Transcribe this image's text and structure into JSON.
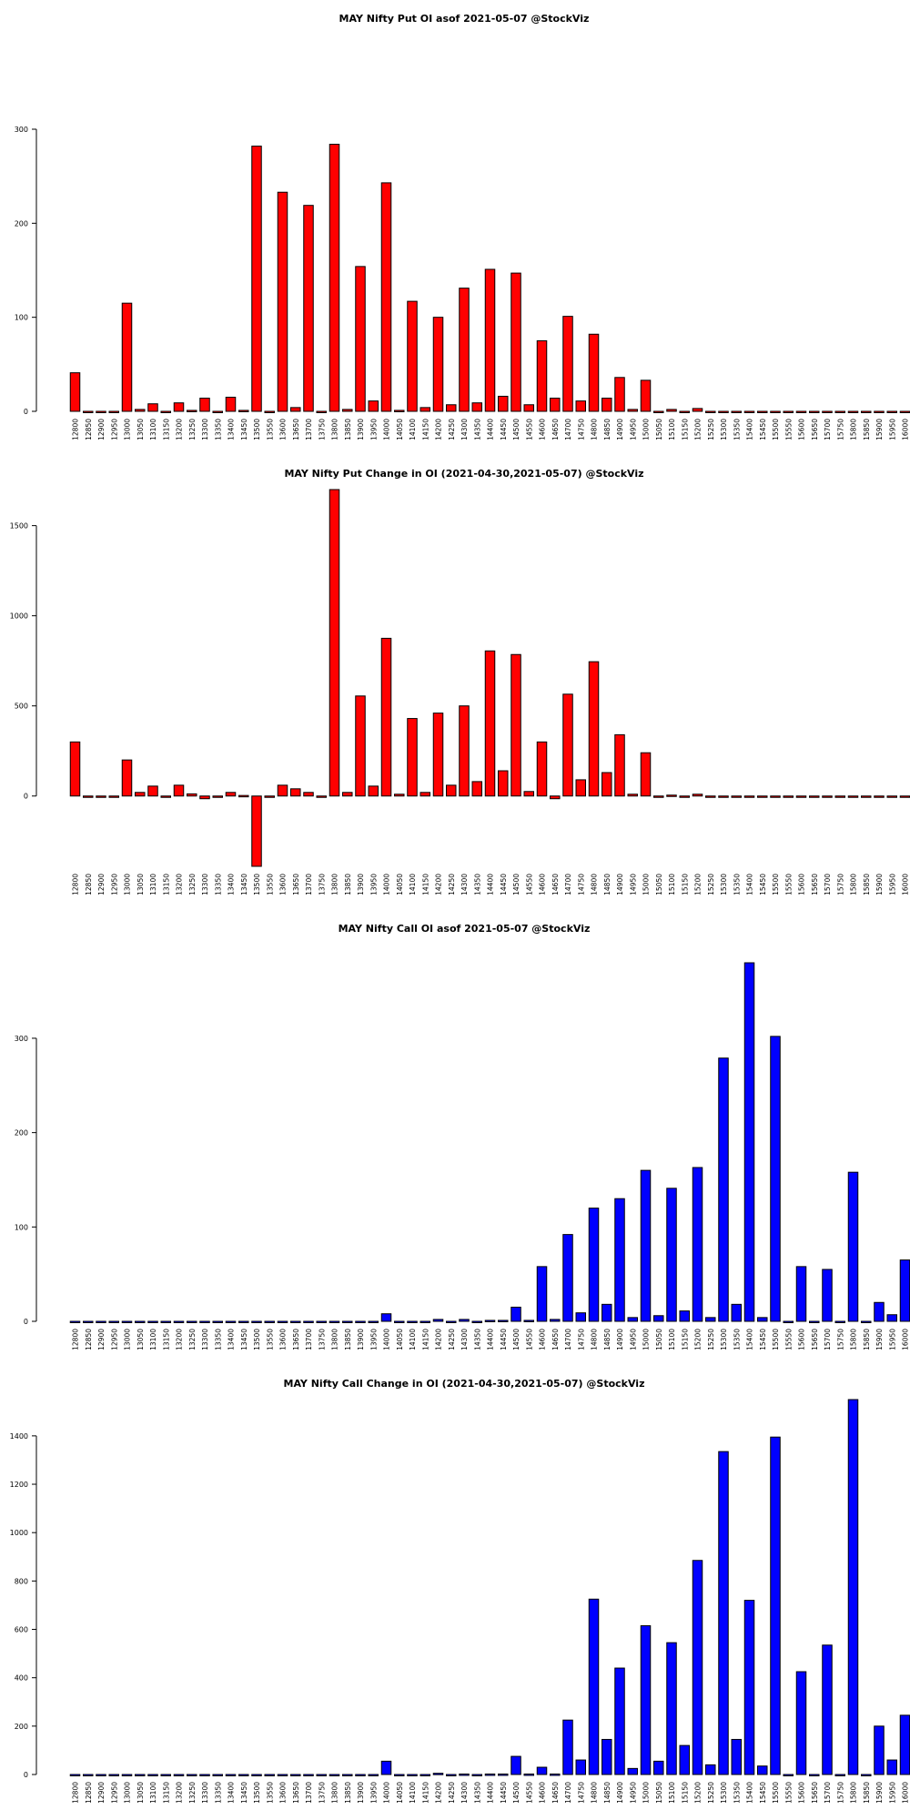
{
  "chart_data": [
    {
      "type": "bar",
      "title": "MAY Nifty Put OI asof 2021-05-07 @StockViz",
      "color": "#ff0000",
      "ylim": [
        0,
        300
      ],
      "yticks": [
        0,
        100,
        200,
        300
      ],
      "categories": [
        "12800",
        "12850",
        "12900",
        "12950",
        "13000",
        "13050",
        "13100",
        "13150",
        "13200",
        "13250",
        "13300",
        "13350",
        "13400",
        "13450",
        "13500",
        "13550",
        "13600",
        "13650",
        "13700",
        "13750",
        "13800",
        "13850",
        "13900",
        "13950",
        "14000",
        "14050",
        "14100",
        "14150",
        "14200",
        "14250",
        "14300",
        "14350",
        "14400",
        "14450",
        "14500",
        "14550",
        "14600",
        "14650",
        "14700",
        "14750",
        "14800",
        "14850",
        "14900",
        "14950",
        "15000",
        "15050",
        "15100",
        "15150",
        "15200",
        "15250",
        "15300",
        "15350",
        "15400",
        "15450",
        "15500",
        "15550",
        "15600",
        "15650",
        "15700",
        "15750",
        "15800",
        "15850",
        "15900",
        "15950",
        "16000"
      ],
      "values": [
        41,
        0,
        0,
        0,
        115,
        2,
        8,
        0,
        9,
        1,
        14,
        0,
        15,
        1,
        282,
        0,
        233,
        4,
        219,
        0,
        284,
        2,
        154,
        11,
        243,
        1,
        117,
        4,
        100,
        7,
        131,
        9,
        151,
        16,
        147,
        7,
        75,
        14,
        101,
        11,
        82,
        14,
        36,
        2,
        33,
        0,
        2,
        0,
        3,
        0,
        0,
        0,
        0,
        0,
        0,
        0,
        0,
        0,
        0,
        0,
        0,
        0,
        0,
        0,
        0
      ]
    },
    {
      "type": "bar",
      "title": "MAY Nifty Put Change in OI (2021-04-30,2021-05-07) @StockViz",
      "color": "#ff0000",
      "ylim": [
        -390,
        1700
      ],
      "yticks": [
        0,
        500,
        1000,
        1500
      ],
      "categories": [
        "12800",
        "12850",
        "12900",
        "12950",
        "13000",
        "13050",
        "13100",
        "13150",
        "13200",
        "13250",
        "13300",
        "13350",
        "13400",
        "13450",
        "13500",
        "13550",
        "13600",
        "13650",
        "13700",
        "13750",
        "13800",
        "13850",
        "13900",
        "13950",
        "14000",
        "14050",
        "14100",
        "14150",
        "14200",
        "14250",
        "14300",
        "14350",
        "14400",
        "14450",
        "14500",
        "14550",
        "14600",
        "14650",
        "14700",
        "14750",
        "14800",
        "14850",
        "14900",
        "14950",
        "15000",
        "15050",
        "15100",
        "15150",
        "15200",
        "15250",
        "15300",
        "15350",
        "15400",
        "15450",
        "15500",
        "15550",
        "15600",
        "15650",
        "15700",
        "15750",
        "15800",
        "15850",
        "15900",
        "15950",
        "16000"
      ],
      "values": [
        300,
        0,
        0,
        0,
        200,
        20,
        55,
        0,
        60,
        12,
        -15,
        0,
        20,
        3,
        -390,
        0,
        60,
        40,
        20,
        0,
        1700,
        20,
        555,
        55,
        875,
        10,
        430,
        20,
        460,
        60,
        500,
        80,
        805,
        140,
        785,
        25,
        300,
        -15,
        565,
        90,
        745,
        130,
        340,
        10,
        240,
        0,
        5,
        0,
        10,
        0,
        0,
        0,
        0,
        0,
        0,
        0,
        0,
        0,
        0,
        0,
        0,
        0,
        0,
        0,
        0
      ]
    },
    {
      "type": "bar",
      "title": "MAY Nifty Call OI asof 2021-05-07 @StockViz",
      "color": "#0000ff",
      "ylim": [
        0,
        380
      ],
      "yticks": [
        0,
        100,
        200,
        300
      ],
      "categories": [
        "12800",
        "12850",
        "12900",
        "12950",
        "13000",
        "13050",
        "13100",
        "13150",
        "13200",
        "13250",
        "13300",
        "13350",
        "13400",
        "13450",
        "13500",
        "13550",
        "13600",
        "13650",
        "13700",
        "13750",
        "13800",
        "13850",
        "13900",
        "13950",
        "14000",
        "14050",
        "14100",
        "14150",
        "14200",
        "14250",
        "14300",
        "14350",
        "14400",
        "14450",
        "14500",
        "14550",
        "14600",
        "14650",
        "14700",
        "14750",
        "14800",
        "14850",
        "14900",
        "14950",
        "15000",
        "15050",
        "15100",
        "15150",
        "15200",
        "15250",
        "15300",
        "15350",
        "15400",
        "15450",
        "15500",
        "15550",
        "15600",
        "15650",
        "15700",
        "15750",
        "15800",
        "15850",
        "15900",
        "15950",
        "16000"
      ],
      "values": [
        0,
        0,
        0,
        0,
        0,
        0,
        0,
        0,
        0,
        0,
        0,
        0,
        0,
        0,
        0,
        0,
        0,
        0,
        0,
        0,
        0,
        0,
        0,
        0,
        8,
        0,
        0,
        0,
        2,
        0,
        2,
        0,
        1,
        1,
        15,
        1,
        58,
        2,
        92,
        9,
        120,
        18,
        130,
        4,
        160,
        6,
        141,
        11,
        163,
        4,
        279,
        18,
        380,
        4,
        302,
        0,
        58,
        0,
        55,
        0,
        158,
        0,
        20,
        7,
        65
      ]
    },
    {
      "type": "bar",
      "title": "MAY Nifty Call Change in OI (2021-04-30,2021-05-07) @StockViz",
      "color": "#0000ff",
      "ylim": [
        0,
        1550
      ],
      "yticks": [
        0,
        200,
        400,
        600,
        800,
        1000,
        1200,
        1400
      ],
      "categories": [
        "12800",
        "12850",
        "12900",
        "12950",
        "13000",
        "13050",
        "13100",
        "13150",
        "13200",
        "13250",
        "13300",
        "13350",
        "13400",
        "13450",
        "13500",
        "13550",
        "13600",
        "13650",
        "13700",
        "13750",
        "13800",
        "13850",
        "13900",
        "13950",
        "14000",
        "14050",
        "14100",
        "14150",
        "14200",
        "14250",
        "14300",
        "14350",
        "14400",
        "14450",
        "14500",
        "14550",
        "14600",
        "14650",
        "14700",
        "14750",
        "14800",
        "14850",
        "14900",
        "14950",
        "15000",
        "15050",
        "15100",
        "15150",
        "15200",
        "15250",
        "15300",
        "15350",
        "15400",
        "15450",
        "15500",
        "15550",
        "15600",
        "15650",
        "15700",
        "15750",
        "15800",
        "15850",
        "15900",
        "15950",
        "16000"
      ],
      "values": [
        0,
        0,
        0,
        0,
        0,
        0,
        0,
        0,
        0,
        0,
        0,
        0,
        0,
        0,
        0,
        0,
        0,
        0,
        0,
        0,
        0,
        0,
        0,
        0,
        55,
        0,
        0,
        0,
        5,
        0,
        2,
        0,
        2,
        2,
        75,
        2,
        30,
        2,
        225,
        60,
        725,
        145,
        440,
        25,
        615,
        55,
        545,
        120,
        885,
        40,
        1335,
        145,
        720,
        35,
        1395,
        0,
        425,
        0,
        535,
        0,
        1550,
        0,
        200,
        60,
        245
      ]
    }
  ]
}
